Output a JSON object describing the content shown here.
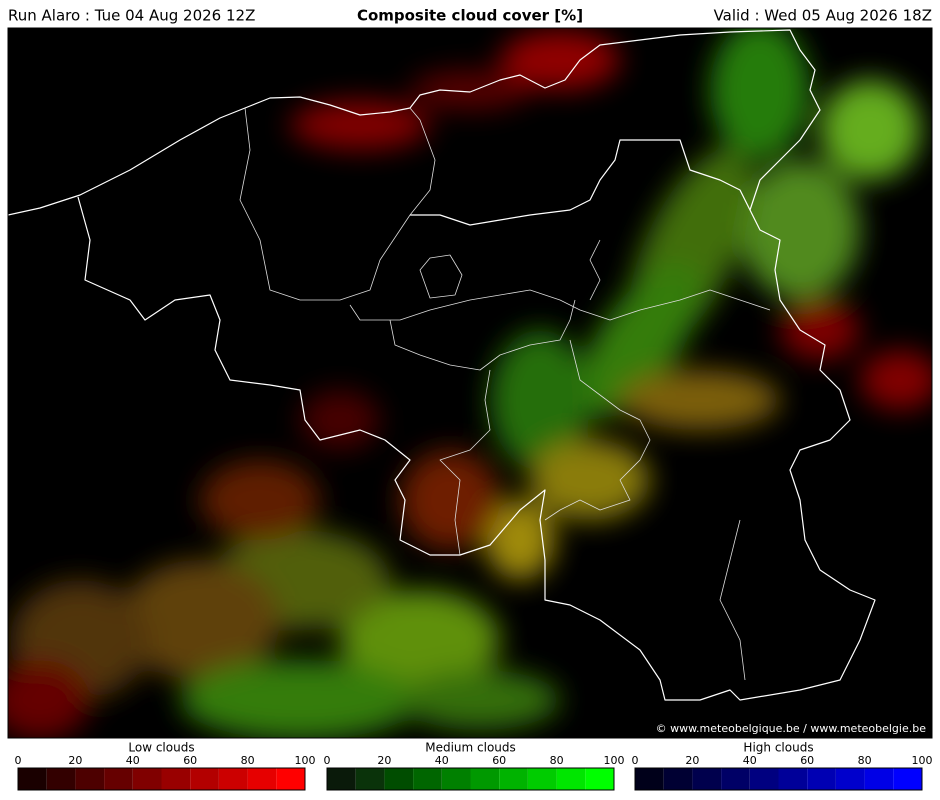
{
  "header": {
    "run": "Run Alaro : Tue 04 Aug 2026 12Z",
    "title": "Composite cloud cover [%]",
    "valid": "Valid : Wed 05 Aug 2026 18Z"
  },
  "map": {
    "credit": "© www.meteobelgique.be / www.meteobelgie.be"
  },
  "legends": [
    {
      "title": "Low clouds",
      "ticks": [
        0,
        20,
        40,
        60,
        80,
        100
      ],
      "colors": [
        "#1a0000",
        "#330000",
        "#4d0000",
        "#660000",
        "#800000",
        "#990000",
        "#b30000",
        "#cc0000",
        "#e60000",
        "#ff0000"
      ]
    },
    {
      "title": "Medium clouds",
      "ticks": [
        0,
        20,
        40,
        60,
        80,
        100
      ],
      "colors": [
        "#0a1a0a",
        "#0a330a",
        "#004d00",
        "#006600",
        "#008000",
        "#009900",
        "#00b300",
        "#00cc00",
        "#00e600",
        "#00ff00"
      ]
    },
    {
      "title": "High clouds",
      "ticks": [
        0,
        20,
        40,
        60,
        80,
        100
      ],
      "colors": [
        "#00001a",
        "#000033",
        "#00004d",
        "#000066",
        "#000080",
        "#000099",
        "#0000b3",
        "#0000cc",
        "#0000e6",
        "#0000ff"
      ]
    }
  ]
}
